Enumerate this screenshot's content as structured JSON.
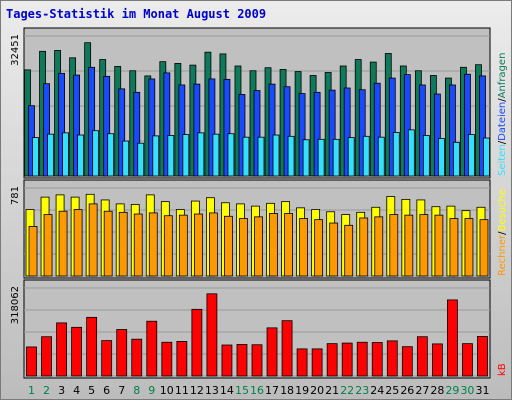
{
  "chart_data": {
    "type": "bar",
    "title": "Tages-Statistik im Monat August 2009",
    "categories": [
      "1",
      "2",
      "3",
      "4",
      "5",
      "6",
      "7",
      "8",
      "9",
      "10",
      "11",
      "12",
      "13",
      "14",
      "15",
      "16",
      "17",
      "18",
      "19",
      "20",
      "21",
      "22",
      "23",
      "24",
      "25",
      "26",
      "27",
      "28",
      "29",
      "30",
      "31"
    ],
    "weekend_days": [
      "1",
      "2",
      "8",
      "9",
      "15",
      "16",
      "22",
      "23",
      "29",
      "30"
    ],
    "panels": [
      {
        "id": "top",
        "ymax_label": "32451",
        "ymax": 32451,
        "series": [
          {
            "name": "Anfragen",
            "color": "#0f7a5a",
            "values": [
              24600,
              28900,
              29100,
              27400,
              30900,
              27000,
              25400,
              24400,
              23200,
              26500,
              26100,
              25700,
              28700,
              28300,
              25500,
              24400,
              25100,
              24700,
              24200,
              23300,
              24000,
              25500,
              27000,
              26400,
              28400,
              25500,
              24400,
              23300,
              22700,
              25200,
              25800
            ]
          },
          {
            "name": "Dateien",
            "color": "#1a4aff",
            "values": [
              16300,
              21400,
              23800,
              23400,
              25200,
              23100,
              20200,
              19400,
              22500,
              23900,
              21100,
              21300,
              22500,
              22400,
              18900,
              19800,
              21300,
              20700,
              19100,
              19400,
              19900,
              20400,
              20000,
              21500,
              22700,
              23500,
              21100,
              19000,
              21100,
              23600,
              23200
            ]
          },
          {
            "name": "Seiten",
            "color": "#33e0ff",
            "values": [
              8900,
              9700,
              10000,
              9500,
              10500,
              9800,
              8100,
              7600,
              9300,
              9400,
              9600,
              10000,
              9700,
              9800,
              9000,
              9000,
              9500,
              9200,
              8400,
              8500,
              8500,
              8900,
              9200,
              9000,
              10100,
              10700,
              9400,
              8700,
              7800,
              9600,
              8800
            ]
          }
        ]
      },
      {
        "id": "middle",
        "ymax_label": "781",
        "ymax": 781,
        "series": [
          {
            "name": "Besuche",
            "color": "#ffff00",
            "values": [
              590,
              700,
              720,
              700,
              725,
              675,
              640,
              635,
              720,
              660,
              590,
              665,
              695,
              650,
              640,
              620,
              645,
              660,
              605,
              590,
              570,
              545,
              565,
              610,
              705,
              680,
              675,
              615,
              620,
              580,
              610
            ]
          },
          {
            "name": "Rechner",
            "color": "#ff9900",
            "values": [
              440,
              545,
              575,
              590,
              640,
              575,
              565,
              550,
              560,
              535,
              540,
              550,
              560,
              530,
              510,
              525,
              555,
              555,
              510,
              500,
              470,
              450,
              515,
              525,
              545,
              540,
              545,
              540,
              510,
              510,
              500
            ]
          }
        ]
      },
      {
        "id": "bottom",
        "ymax_label": "318062",
        "ymax": 318062,
        "series": [
          {
            "name": "kB",
            "color": "#ff0000",
            "values": [
              105000,
              142000,
              192000,
              176000,
              212000,
              128000,
              168000,
              133000,
              198000,
              122000,
              125000,
              241000,
              297000,
              112000,
              114000,
              113000,
              174000,
              200000,
              98000,
              98000,
              117000,
              119000,
              122000,
              121000,
              127000,
              106000,
              142000,
              116000,
              275000,
              117000,
              143000
            ]
          }
        ]
      }
    ]
  },
  "colors": {
    "panel_bg": "#c0c0c0",
    "grid": "#9a9a9a",
    "title": "#0000cc",
    "weekday_label": "#000000",
    "weekend_label": "#00804d"
  }
}
